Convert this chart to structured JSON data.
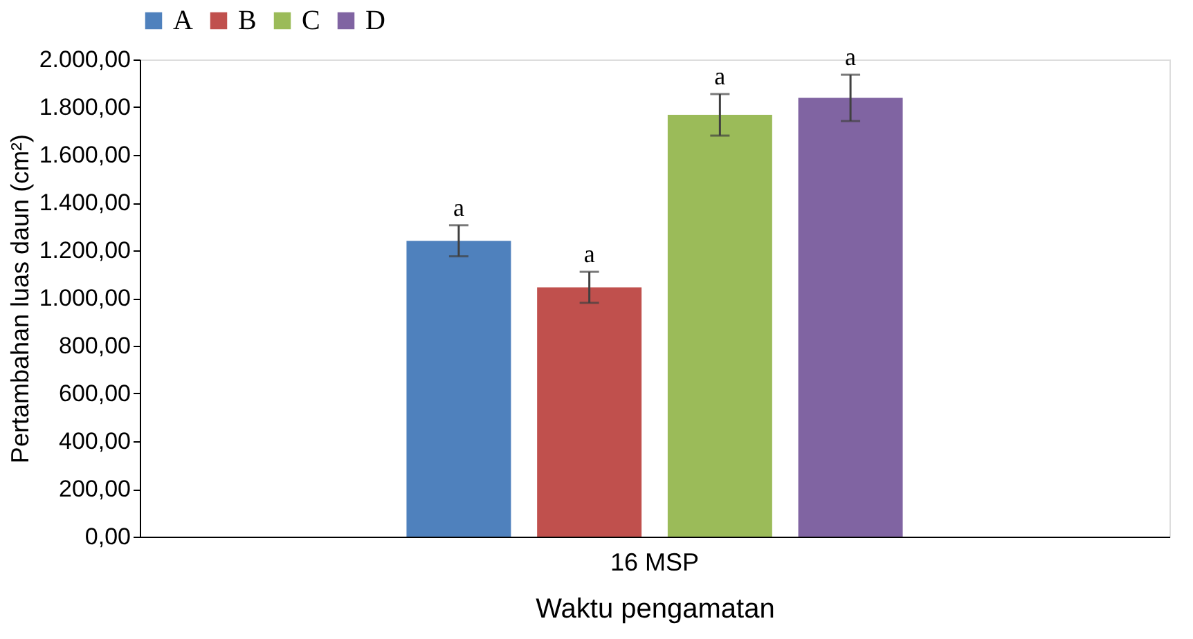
{
  "chart_data": {
    "type": "bar",
    "xlabel": "Waktu pengamatan",
    "ylabel": "Pertambahan luas daun (cm²)",
    "categories": [
      "16 MSP"
    ],
    "series": [
      {
        "name": "A",
        "color": "#4f81bd",
        "values": [
          1240
        ],
        "errors": [
          65
        ],
        "value_labels": [
          "a"
        ]
      },
      {
        "name": "B",
        "color": "#c0504d",
        "values": [
          1045
        ],
        "errors": [
          65
        ],
        "value_labels": [
          "a"
        ]
      },
      {
        "name": "C",
        "color": "#9bbb59",
        "values": [
          1768
        ],
        "errors": [
          87
        ],
        "value_labels": [
          "a"
        ]
      },
      {
        "name": "D",
        "color": "#8064a2",
        "values": [
          1839
        ],
        "errors": [
          97
        ],
        "value_labels": [
          "a"
        ]
      }
    ],
    "ylim": [
      0,
      2000
    ],
    "yticks": [
      {
        "value": 0,
        "label": "0,00"
      },
      {
        "value": 200,
        "label": "200,00"
      },
      {
        "value": 400,
        "label": "400,00"
      },
      {
        "value": 600,
        "label": "600,00"
      },
      {
        "value": 800,
        "label": "800,00"
      },
      {
        "value": 1000,
        "label": "1.000,00"
      },
      {
        "value": 1200,
        "label": "1.200,00"
      },
      {
        "value": 1400,
        "label": "1.400,00"
      },
      {
        "value": 1600,
        "label": "1.600,00"
      },
      {
        "value": 1800,
        "label": "1.800,00"
      },
      {
        "value": 2000,
        "label": "2.000,00"
      }
    ],
    "grid": false,
    "legend": "top"
  }
}
